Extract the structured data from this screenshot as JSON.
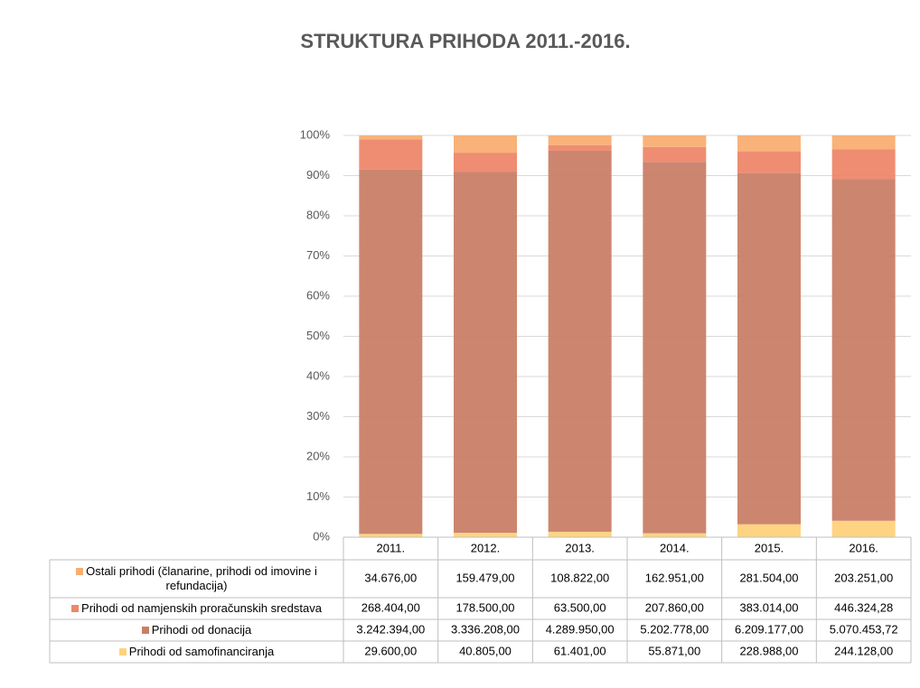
{
  "chart_data": {
    "type": "bar",
    "stacking": "percent",
    "title": "STRUKTURA PRIHODA 2011.-2016.",
    "categories": [
      "2011.",
      "2012.",
      "2013.",
      "2014.",
      "2015.",
      "2016."
    ],
    "series": [
      {
        "name": "Ostali prihodi (članarine, prihodi od imovine i refundacija)",
        "color": "#f9ae72",
        "values": [
          34676,
          159479,
          108822,
          162951,
          281504,
          203251
        ],
        "value_labels": [
          "34.676,00",
          "159.479,00",
          "108.822,00",
          "162.951,00",
          "281.504,00",
          "203.251,00"
        ]
      },
      {
        "name": "Prihodi od namjenskih proračunskih sredstava",
        "color": "#ed876a",
        "values": [
          268404,
          178500,
          63500,
          207860,
          383014,
          446324.28
        ],
        "value_labels": [
          "268.404,00",
          "178.500,00",
          "63.500,00",
          "207.860,00",
          "383.014,00",
          "446.324,28"
        ]
      },
      {
        "name": "Prihodi od donacija",
        "color": "#c97f67",
        "values": [
          3242394,
          3336208,
          4289950,
          5202778,
          6209177,
          5070453.72
        ],
        "value_labels": [
          "3.242.394,00",
          "3.336.208,00",
          "4.289.950,00",
          "5.202.778,00",
          "6.209.177,00",
          "5.070.453,72"
        ]
      },
      {
        "name": "Prihodi od samofinanciranja",
        "color": "#fed27c",
        "values": [
          29600,
          40805,
          61401,
          55871,
          228988,
          244128
        ],
        "value_labels": [
          "29.600,00",
          "40.805,00",
          "61.401,00",
          "55.871,00",
          "228.988,00",
          "244.128,00"
        ]
      }
    ],
    "ylim": [
      0,
      100
    ],
    "yticks": [
      {
        "value": 0,
        "label": "0%"
      },
      {
        "value": 10,
        "label": "10%"
      },
      {
        "value": 20,
        "label": "20%"
      },
      {
        "value": 30,
        "label": "30%"
      },
      {
        "value": 40,
        "label": "40%"
      },
      {
        "value": 50,
        "label": "50%"
      },
      {
        "value": 60,
        "label": "60%"
      },
      {
        "value": 70,
        "label": "70%"
      },
      {
        "value": 80,
        "label": "80%"
      },
      {
        "value": 90,
        "label": "90%"
      },
      {
        "value": 100,
        "label": "100%"
      }
    ],
    "grid": true
  }
}
